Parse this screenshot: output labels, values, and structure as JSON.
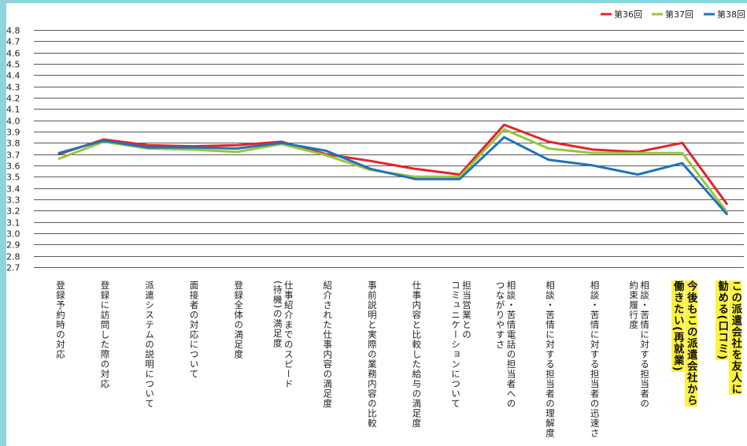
{
  "colors": {
    "frame": "#8fd3df",
    "grid": "#222222",
    "highlight": "#fff23c"
  },
  "legend": [
    {
      "label": "第36回",
      "color": "#e0242b"
    },
    {
      "label": "第37回",
      "color": "#9ac53c"
    },
    {
      "label": "第38回",
      "color": "#1f73b7"
    }
  ],
  "chart_data": {
    "type": "line",
    "ylim": [
      2.7,
      4.8
    ],
    "yticks": [
      "4.8",
      "4.7",
      "4.6",
      "4.5",
      "4.4",
      "4.3",
      "4.2",
      "4.1",
      "4.0",
      "3.9",
      "3.8",
      "3.7",
      "3.6",
      "3.5",
      "3.4",
      "3.3",
      "3.2",
      "3.1",
      "3.0",
      "2.9",
      "2.8",
      "2.7"
    ],
    "categories": [
      {
        "lines": [
          "登録予約時の対応"
        ],
        "highlight": false
      },
      {
        "lines": [
          "登録に訪問した際の対応"
        ],
        "highlight": false
      },
      {
        "lines": [
          "派遣システムの説明について"
        ],
        "highlight": false
      },
      {
        "lines": [
          "面接者の対応について"
        ],
        "highlight": false
      },
      {
        "lines": [
          "登録全体の満足度"
        ],
        "highlight": false
      },
      {
        "lines": [
          "仕事紹介までのスピード",
          "(待機)の満足度"
        ],
        "highlight": false
      },
      {
        "lines": [
          "紹介された仕事内容の満足度"
        ],
        "highlight": false
      },
      {
        "lines": [
          "事前説明と実際の業務内容の比較"
        ],
        "highlight": false
      },
      {
        "lines": [
          "仕事内容と比較した給与の満足度"
        ],
        "highlight": false
      },
      {
        "lines": [
          "担当営業との",
          "コミュニケーションについて"
        ],
        "highlight": false
      },
      {
        "lines": [
          "相談・苦情電話の担当者への",
          "つながりやすさ"
        ],
        "highlight": false
      },
      {
        "lines": [
          "相談・苦情に対する担当者の理解度"
        ],
        "highlight": false
      },
      {
        "lines": [
          "相談・苦情に対する担当者の迅速さ"
        ],
        "highlight": false
      },
      {
        "lines": [
          "相談・苦情に対する担当者の",
          "約束履行度"
        ],
        "highlight": false
      },
      {
        "lines": [
          "今後もこの派遣会社から",
          "働きたい(再就業)"
        ],
        "highlight": true
      },
      {
        "lines": [
          "この派遣会社を友人に",
          "勧める(口コミ)"
        ],
        "highlight": true
      }
    ],
    "series": [
      {
        "name": "第36回",
        "color": "#e0242b",
        "values": [
          3.7,
          3.83,
          3.78,
          3.77,
          3.78,
          3.81,
          3.7,
          3.64,
          3.57,
          3.52,
          3.96,
          3.81,
          3.74,
          3.72,
          3.8,
          3.26
        ]
      },
      {
        "name": "第37回",
        "color": "#9ac53c",
        "values": [
          3.66,
          3.81,
          3.75,
          3.74,
          3.72,
          3.79,
          3.69,
          3.56,
          3.5,
          3.5,
          3.92,
          3.75,
          3.71,
          3.71,
          3.71,
          3.19
        ]
      },
      {
        "name": "第38回",
        "color": "#1f73b7",
        "values": [
          3.71,
          3.82,
          3.76,
          3.76,
          3.75,
          3.8,
          3.73,
          3.57,
          3.48,
          3.48,
          3.85,
          3.65,
          3.6,
          3.52,
          3.62,
          3.17
        ]
      }
    ],
    "grid": true,
    "legend_position": "top-right"
  }
}
